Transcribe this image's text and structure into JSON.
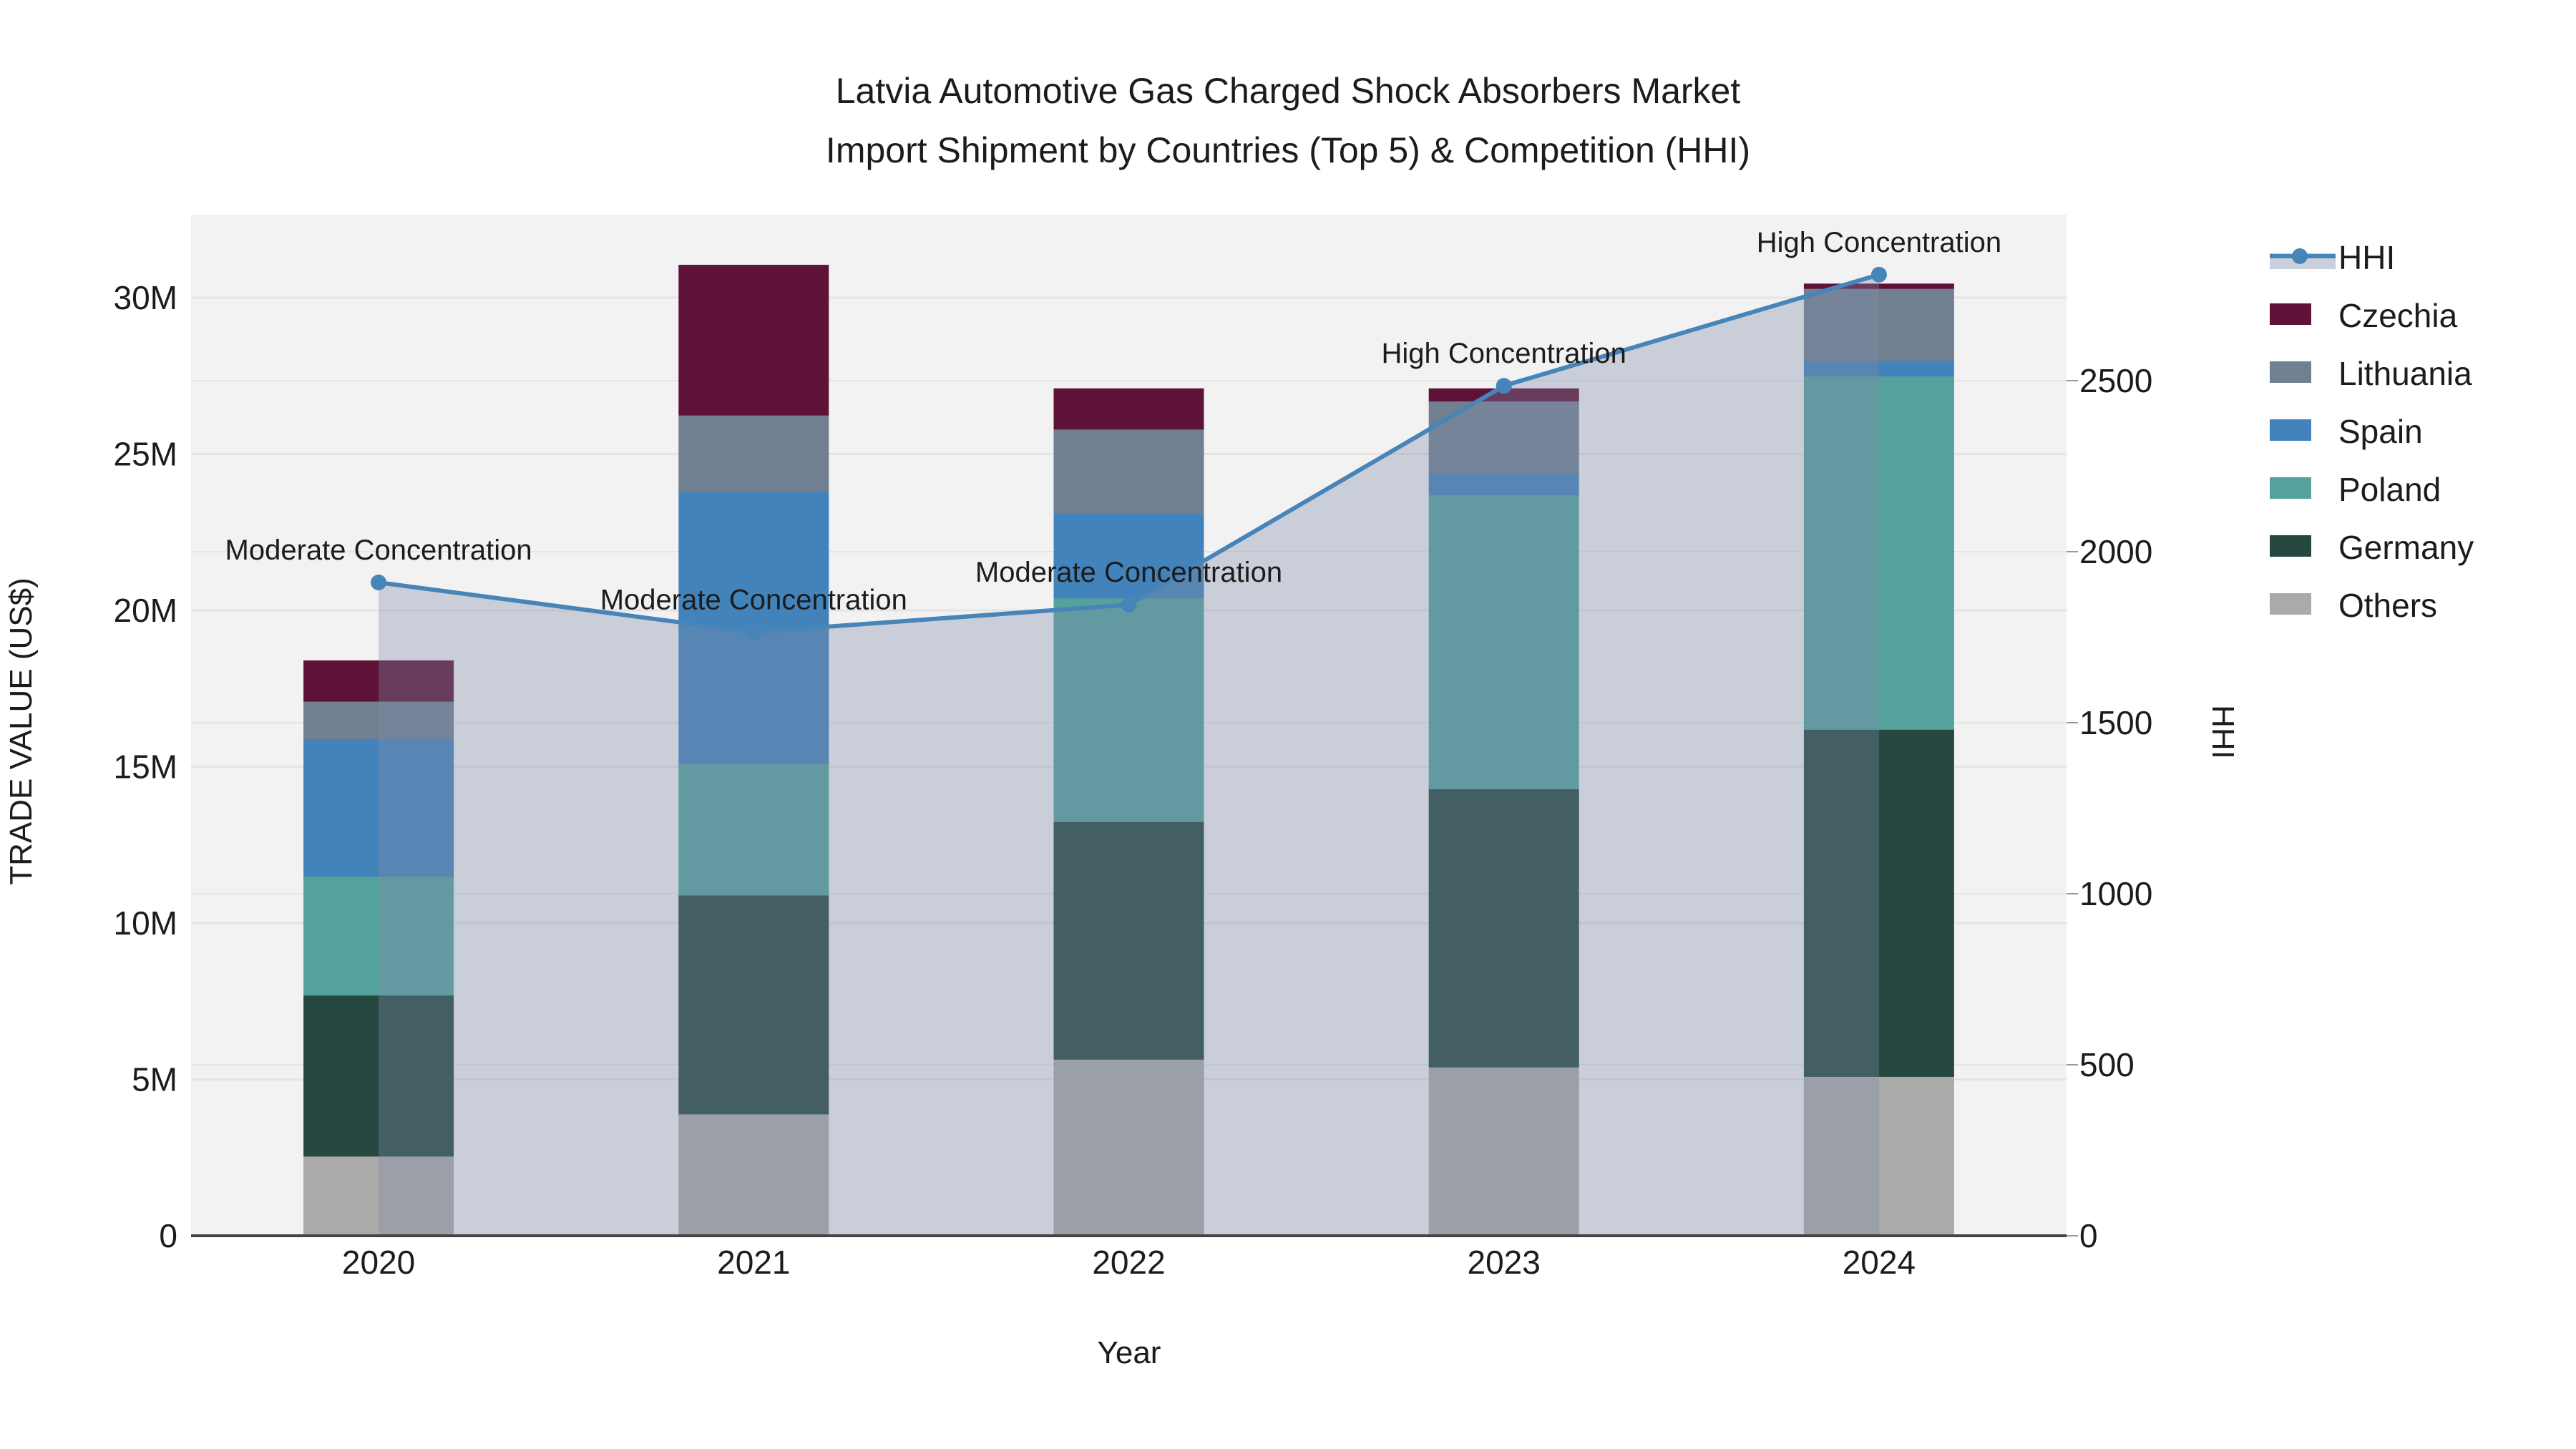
{
  "title": {
    "line1": "Latvia Automotive Gas Charged Shock Absorbers Market",
    "line2": "Import Shipment by Countries (Top 5) & Competition (HHI)"
  },
  "chart_data": {
    "type": "bar+line",
    "unit": "M US$",
    "categories": [
      "2020",
      "2021",
      "2022",
      "2023",
      "2024"
    ],
    "series": [
      {
        "name": "Others",
        "color_key": "others",
        "values": [
          2.55,
          3.9,
          5.65,
          5.4,
          5.1
        ]
      },
      {
        "name": "Germany",
        "color_key": "germany",
        "values": [
          5.15,
          7.0,
          7.6,
          8.9,
          11.1
        ]
      },
      {
        "name": "Poland",
        "color_key": "poland",
        "values": [
          3.8,
          4.2,
          7.15,
          9.4,
          11.3
        ]
      },
      {
        "name": "Spain",
        "color_key": "spain",
        "values": [
          4.4,
          8.7,
          2.7,
          0.7,
          0.5
        ]
      },
      {
        "name": "Lithuania",
        "color_key": "lithuania",
        "values": [
          1.2,
          2.45,
          2.7,
          2.3,
          2.3
        ]
      },
      {
        "name": "Czechia",
        "color_key": "czechia",
        "values": [
          1.3,
          4.8,
          1.3,
          0.4,
          0.15
        ]
      }
    ],
    "line_series": {
      "name": "HHI",
      "values": [
        1910,
        1765,
        1845,
        2485,
        2810
      ]
    },
    "annotations": [
      {
        "category": "2020",
        "text": "Moderate Concentration"
      },
      {
        "category": "2021",
        "text": "Moderate Concentration"
      },
      {
        "category": "2022",
        "text": "Moderate Concentration"
      },
      {
        "category": "2023",
        "text": "High Concentration"
      },
      {
        "category": "2024",
        "text": "High Concentration"
      }
    ],
    "xlabel": "Year",
    "ylabel_left": "TRADE VALUE (US$)",
    "ylabel_right": "HHI",
    "yaxis_left": {
      "ticks": [
        "0",
        "5M",
        "10M",
        "15M",
        "20M",
        "25M",
        "30M"
      ],
      "tick_step_millions": 5,
      "range_max_millions": 32.6,
      "grid": true
    },
    "yaxis_right": {
      "ticks": [
        "0",
        "500",
        "1000",
        "1500",
        "2000",
        "2500"
      ],
      "tick_step": 500,
      "range_max": 2985,
      "grid": true
    },
    "legend_order": [
      "HHI",
      "Czechia",
      "Lithuania",
      "Spain",
      "Poland",
      "Germany",
      "Others"
    ],
    "legend_position": "right"
  },
  "colors": {
    "czechia": "#5f1237",
    "lithuania": "#708090",
    "spain": "#4383bb",
    "poland": "#55a19d",
    "germany": "#264840",
    "others": "#aaaaa8",
    "hhi_line": "#4784b8",
    "hhi_fill": "rgba(125,139,168,0.35)",
    "hhi_legend_band": "#c9cfdb",
    "plot_bg": "#f2f2f2",
    "grid": "#e4e4e4",
    "axis_line": "#444444",
    "text": "#1c1c1c"
  }
}
